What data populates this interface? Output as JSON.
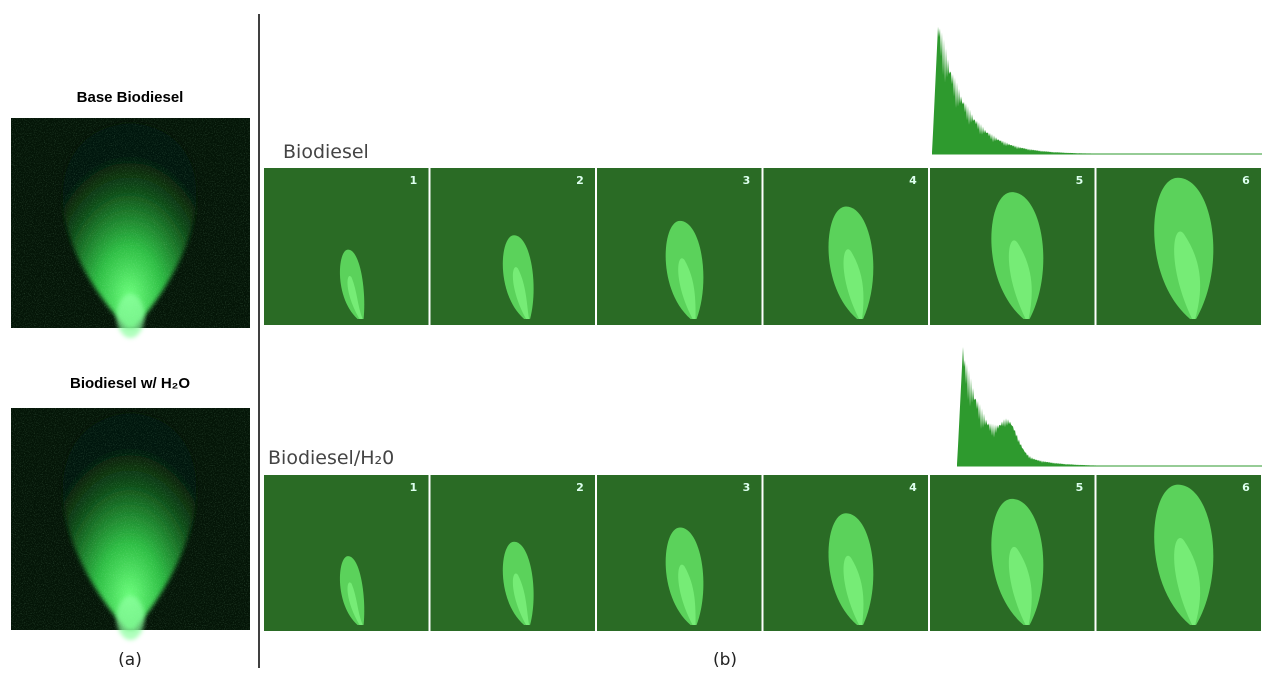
{
  "panel_a": {
    "photos": [
      {
        "label": "Base Biodiesel"
      },
      {
        "label": "Biodiesel w/ H₂O"
      }
    ],
    "caption": "(a)"
  },
  "panel_b": {
    "rows": [
      {
        "label": "Biodiesel",
        "frames": [
          "1",
          "2",
          "3",
          "4",
          "5",
          "6"
        ]
      },
      {
        "label": "Biodiesel/H₂0",
        "frames": [
          "1",
          "2",
          "3",
          "4",
          "5",
          "6"
        ]
      }
    ],
    "caption": "(b)"
  }
}
